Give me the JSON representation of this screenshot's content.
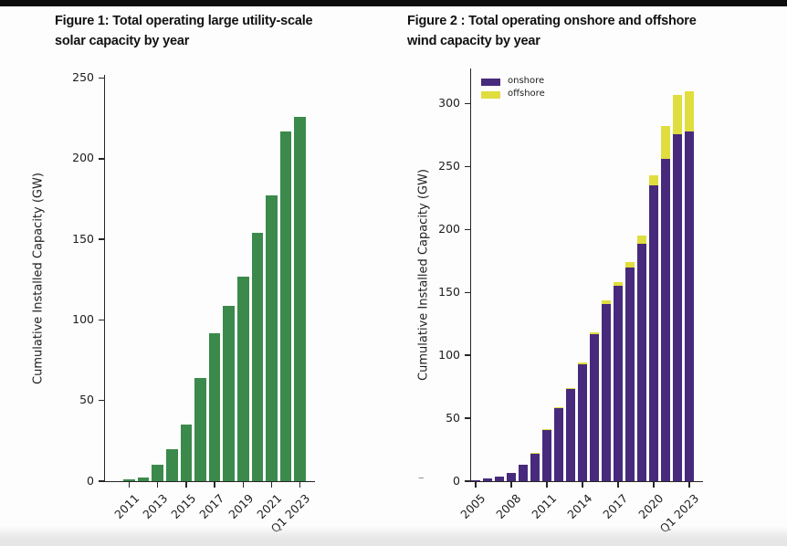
{
  "page": {
    "top_bar_color": "#0d0d0d",
    "background": "#fdfdfd",
    "stray_dash": "–"
  },
  "chart_data": [
    {
      "type": "bar",
      "title": "Figure 1: Total operating large utility-scale solar capacity by year",
      "title_lines": [
        "Figure 1: Total operating large utility-scale",
        "solar capacity by year"
      ],
      "ylabel": "Cumulative Installed Capacity (GW)",
      "xlabel": "",
      "categories": [
        "2011",
        "2012",
        "2013",
        "2014",
        "2015",
        "2016",
        "2017",
        "2018",
        "2019",
        "2020",
        "2021",
        "2022",
        "Q1 2023"
      ],
      "values": [
        1,
        2.5,
        10,
        20,
        35,
        64,
        92,
        109,
        127,
        154,
        177,
        217,
        226
      ],
      "bar_color": "#3b8a4c",
      "yticks": [
        0,
        50,
        100,
        150,
        200,
        250
      ],
      "xtick_shown": [
        "2011",
        "2013",
        "2015",
        "2017",
        "2019",
        "2021",
        "Q1 2023"
      ],
      "ylim": [
        0,
        252
      ],
      "grid": false,
      "legend": null
    },
    {
      "type": "stacked-bar",
      "title": "Figure 2 : Total operating onshore and offshore wind capacity by year",
      "title_lines": [
        "Figure 2 : Total operating onshore and offshore",
        "wind capacity by year"
      ],
      "ylabel": "Cumulative Installed Capacity (GW)",
      "xlabel": "",
      "categories": [
        "2005",
        "2006",
        "2007",
        "2008",
        "2009",
        "2010",
        "2011",
        "2012",
        "2013",
        "2014",
        "2015",
        "2016",
        "2017",
        "2018",
        "2019",
        "2020",
        "2021",
        "2022",
        "Q1 2023"
      ],
      "series": [
        {
          "name": "onshore",
          "color": "#472a7c",
          "values": [
            1,
            2,
            3.5,
            6.5,
            13,
            22,
            41,
            58,
            73,
            93,
            117,
            141,
            155,
            170,
            189,
            235,
            256,
            276,
            278
          ]
        },
        {
          "name": "offshore",
          "color": "#e0dd3e",
          "values": [
            0,
            0,
            0,
            0,
            0,
            0.5,
            0.5,
            0.5,
            0.5,
            1,
            1,
            2.5,
            3,
            4,
            6,
            8,
            26,
            31,
            32
          ]
        }
      ],
      "yticks": [
        0,
        50,
        100,
        150,
        200,
        250,
        300
      ],
      "xtick_shown": [
        "2005",
        "2008",
        "2011",
        "2014",
        "2017",
        "2020",
        "Q1 2023"
      ],
      "ylim": [
        0,
        328
      ],
      "grid": false,
      "legend": {
        "position": "upper-left",
        "entries": [
          "onshore",
          "offshore"
        ]
      }
    }
  ]
}
